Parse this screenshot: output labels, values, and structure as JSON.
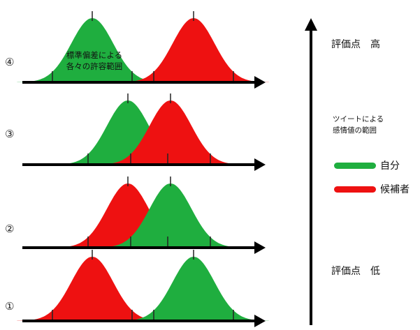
{
  "rows": [
    {
      "id": "4",
      "label": "④",
      "green_mean": 132,
      "red_mean": 277,
      "overlap": "small"
    },
    {
      "id": "3",
      "label": "③",
      "green_mean": 183,
      "red_mean": 244,
      "overlap": "partial"
    },
    {
      "id": "2",
      "label": "②",
      "green_mean": 244,
      "red_mean": 183,
      "overlap": "partial"
    },
    {
      "id": "1",
      "label": "①",
      "green_mean": 277,
      "red_mean": 132,
      "overlap": "small"
    }
  ],
  "annotation": {
    "line1": "標準偏差による",
    "line2": "各々の許容範囲"
  },
  "axis": {
    "top_label": "評価点　高",
    "bottom_label": "評価点　低"
  },
  "legend": {
    "desc_line1": "ツイートによる",
    "desc_line2": "感情値の範囲",
    "items": [
      {
        "key": "self",
        "label": "自分",
        "color": "#1fae3f"
      },
      {
        "key": "candidate",
        "label": "候補者",
        "color": "#ee1111"
      }
    ]
  },
  "colors": {
    "green": "#1fae3f",
    "red": "#ee1111",
    "axis": "#000000"
  }
}
